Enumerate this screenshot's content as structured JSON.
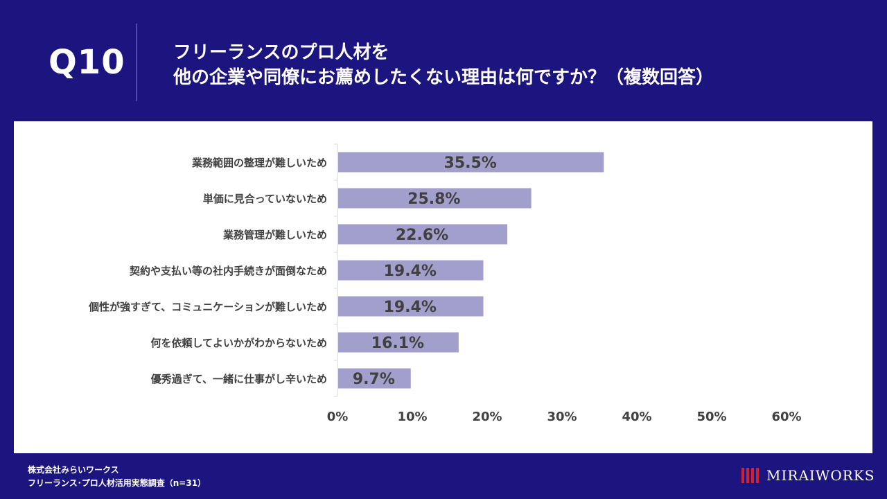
{
  "header": {
    "question_number": "Q10",
    "title_line1": "フリーランスのプロ人材を",
    "title_line2": "他の企業や同僚にお薦めしたくない理由は何ですか？（複数回答）"
  },
  "footer": {
    "company": "株式会社みらいワークス",
    "survey": "フリーランス･プロ人材活用実態調査（n=31）"
  },
  "logo": {
    "text": "MIRAIWORKS"
  },
  "colors": {
    "background": "#1c1580",
    "bar": "#a39fcc",
    "label_text": "#404040",
    "value_text": "#404040"
  },
  "chart_data": {
    "type": "bar",
    "orientation": "horizontal",
    "categories": [
      "業務範囲の整理が難しいため",
      "単価に見合っていないため",
      "業務管理が難しいため",
      "契約や支払い等の社内手続きが面倒なため",
      "個性が強すぎて、コミュニケーションが難しいため",
      "何を依頼してよいかがわからないため",
      "優秀過ぎて、一緒に仕事がし辛いため"
    ],
    "values": [
      35.5,
      25.8,
      22.6,
      19.4,
      19.4,
      16.1,
      9.7
    ],
    "value_labels": [
      "35.5%",
      "25.8%",
      "22.6%",
      "19.4%",
      "19.4%",
      "16.1%",
      "9.7%"
    ],
    "xlim": [
      0,
      60
    ],
    "xticks": [
      0,
      10,
      20,
      30,
      40,
      50,
      60
    ],
    "xtick_labels": [
      "0%",
      "10%",
      "20%",
      "30%",
      "40%",
      "50%",
      "60%"
    ],
    "grid": false
  }
}
